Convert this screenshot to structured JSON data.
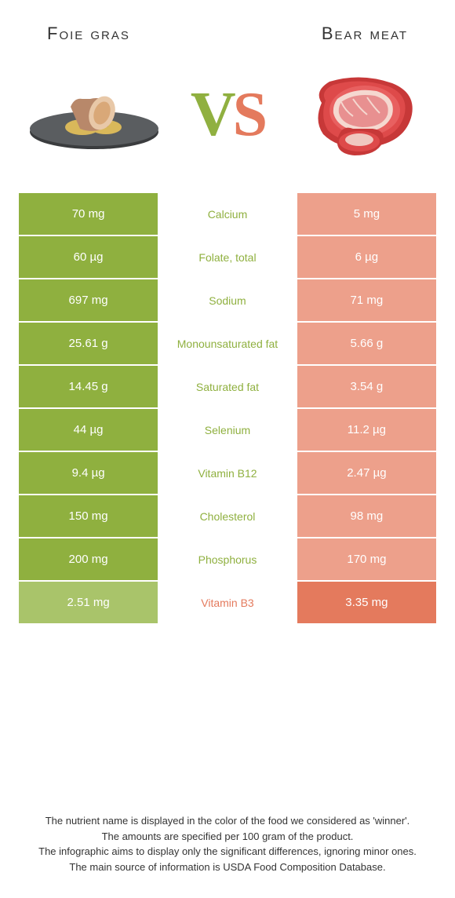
{
  "colors": {
    "left_high": "#8fb03f",
    "left_low": "#a9c46a",
    "right_high": "#e47a5d",
    "right_low": "#eda08b",
    "mid_bg": "#ffffff"
  },
  "titles": {
    "left": "Foie gras",
    "right": "Bear meat"
  },
  "vs": {
    "v": "V",
    "s": "S"
  },
  "rows": [
    {
      "left": "70 mg",
      "mid": "Calcium",
      "right": "5 mg",
      "winner": "left"
    },
    {
      "left": "60 µg",
      "mid": "Folate, total",
      "right": "6 µg",
      "winner": "left"
    },
    {
      "left": "697 mg",
      "mid": "Sodium",
      "right": "71 mg",
      "winner": "left"
    },
    {
      "left": "25.61 g",
      "mid": "Monounsaturated fat",
      "right": "5.66 g",
      "winner": "left"
    },
    {
      "left": "14.45 g",
      "mid": "Saturated fat",
      "right": "3.54 g",
      "winner": "left"
    },
    {
      "left": "44 µg",
      "mid": "Selenium",
      "right": "11.2 µg",
      "winner": "left"
    },
    {
      "left": "9.4 µg",
      "mid": "Vitamin B12",
      "right": "2.47 µg",
      "winner": "left"
    },
    {
      "left": "150 mg",
      "mid": "Cholesterol",
      "right": "98 mg",
      "winner": "left"
    },
    {
      "left": "200 mg",
      "mid": "Phosphorus",
      "right": "170 mg",
      "winner": "left"
    },
    {
      "left": "2.51 mg",
      "mid": "Vitamin B3",
      "right": "3.35 mg",
      "winner": "right"
    }
  ],
  "footer": {
    "l1": "The nutrient name is displayed in the color of the food we considered as 'winner'.",
    "l2": "The amounts are specified per 100 gram of the product.",
    "l3": "The infographic aims to display only the significant differences, ignoring minor ones.",
    "l4": "The main source of information is USDA Food Composition Database."
  }
}
